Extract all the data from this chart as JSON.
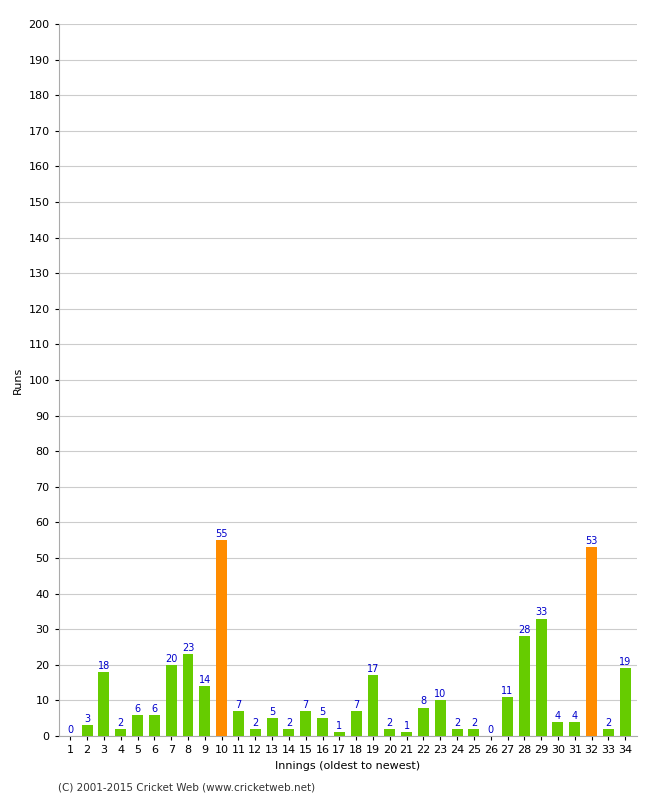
{
  "title": "",
  "xlabel": "Innings (oldest to newest)",
  "ylabel": "Runs",
  "footer": "(C) 2001-2015 Cricket Web (www.cricketweb.net)",
  "innings": [
    1,
    2,
    3,
    4,
    5,
    6,
    7,
    8,
    9,
    10,
    11,
    12,
    13,
    14,
    15,
    16,
    17,
    18,
    19,
    20,
    21,
    22,
    23,
    24,
    25,
    26,
    27,
    28,
    29,
    30,
    31,
    32,
    33,
    34
  ],
  "values": [
    0,
    3,
    18,
    2,
    6,
    6,
    20,
    23,
    14,
    55,
    7,
    2,
    5,
    2,
    7,
    5,
    1,
    7,
    17,
    2,
    1,
    8,
    10,
    2,
    2,
    0,
    11,
    28,
    33,
    4,
    4,
    53,
    2,
    19
  ],
  "bar_colors": [
    "#66cc00",
    "#66cc00",
    "#66cc00",
    "#66cc00",
    "#66cc00",
    "#66cc00",
    "#66cc00",
    "#66cc00",
    "#66cc00",
    "#ff8c00",
    "#66cc00",
    "#66cc00",
    "#66cc00",
    "#66cc00",
    "#66cc00",
    "#66cc00",
    "#66cc00",
    "#66cc00",
    "#66cc00",
    "#66cc00",
    "#66cc00",
    "#66cc00",
    "#66cc00",
    "#66cc00",
    "#66cc00",
    "#66cc00",
    "#66cc00",
    "#66cc00",
    "#66cc00",
    "#66cc00",
    "#66cc00",
    "#ff8c00",
    "#66cc00",
    "#66cc00"
  ],
  "ylim": [
    0,
    200
  ],
  "yticks": [
    0,
    10,
    20,
    30,
    40,
    50,
    60,
    70,
    80,
    90,
    100,
    110,
    120,
    130,
    140,
    150,
    160,
    170,
    180,
    190,
    200
  ],
  "background_color": "#ffffff",
  "grid_color": "#cccccc",
  "label_color": "#0000cc",
  "label_fontsize": 7,
  "tick_fontsize": 8,
  "axis_label_fontsize": 8,
  "footer_fontsize": 7.5
}
